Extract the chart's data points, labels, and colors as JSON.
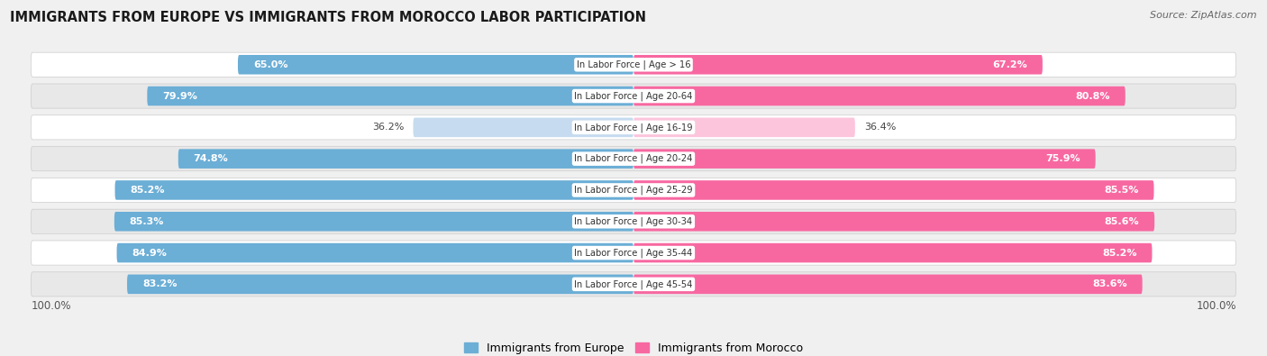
{
  "title": "IMMIGRANTS FROM EUROPE VS IMMIGRANTS FROM MOROCCO LABOR PARTICIPATION",
  "source": "Source: ZipAtlas.com",
  "categories": [
    "In Labor Force | Age > 16",
    "In Labor Force | Age 20-64",
    "In Labor Force | Age 16-19",
    "In Labor Force | Age 20-24",
    "In Labor Force | Age 25-29",
    "In Labor Force | Age 30-34",
    "In Labor Force | Age 35-44",
    "In Labor Force | Age 45-54"
  ],
  "europe_values": [
    65.0,
    79.9,
    36.2,
    74.8,
    85.2,
    85.3,
    84.9,
    83.2
  ],
  "morocco_values": [
    67.2,
    80.8,
    36.4,
    75.9,
    85.5,
    85.6,
    85.2,
    83.6
  ],
  "europe_color_full": "#6baed6",
  "europe_color_light": "#c6dbef",
  "morocco_color_full": "#f768a1",
  "morocco_color_light": "#fcc5dc",
  "europe_label": "Immigrants from Europe",
  "morocco_label": "Immigrants from Morocco",
  "bar_height": 0.62,
  "max_value": 100.0,
  "bg_color": "#f0f0f0",
  "row_bg_even": "#ffffff",
  "row_bg_odd": "#e8e8e8",
  "label_threshold": 50.0
}
